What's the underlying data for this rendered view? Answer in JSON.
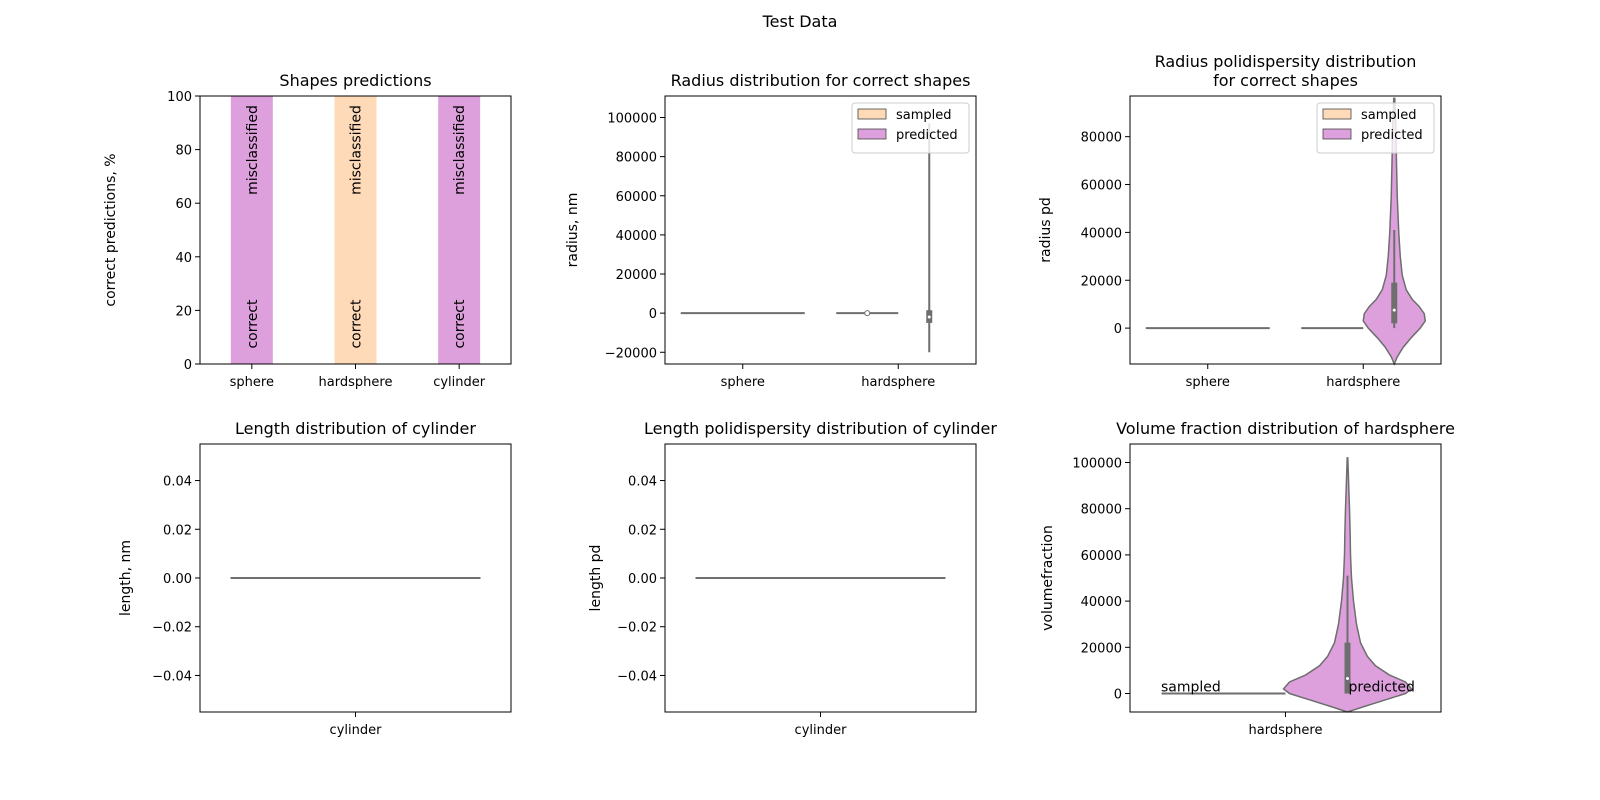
{
  "figure": {
    "suptitle": "Test Data"
  },
  "colors": {
    "sampled": "#ffdab9",
    "predicted": "#dda0dd",
    "line": "#6e6e6e",
    "edge": "#444444"
  },
  "chart_data": [
    {
      "type": "bar",
      "title": "Shapes predictions",
      "ylabel": "correct predictions, %",
      "categories": [
        "sphere",
        "hardsphere",
        "cylinder"
      ],
      "yticks": [
        "0",
        "20",
        "40",
        "60",
        "80",
        "100"
      ],
      "ylim": [
        0,
        100
      ],
      "series": [
        {
          "name": "correct",
          "values": [
            100,
            100,
            100
          ]
        },
        {
          "name": "misclassified",
          "values": [
            0,
            0,
            0
          ]
        }
      ],
      "bar_colors": [
        "#dda0dd",
        "#ffdab9",
        "#dda0dd"
      ],
      "bar_labels": {
        "correct": "correct",
        "misclassified": "misclassified"
      }
    },
    {
      "type": "violin",
      "title": "Radius distribution for correct shapes",
      "ylabel": "radius, nm",
      "categories": [
        "sphere",
        "hardsphere"
      ],
      "yticks": [
        "−20000",
        "0",
        "20000",
        "40000",
        "60000",
        "80000",
        "100000"
      ],
      "ylim": [
        -26000,
        111000
      ],
      "legend": {
        "position": "upper right",
        "items": [
          "sampled",
          "predicted"
        ]
      },
      "series": [
        {
          "name": "sampled",
          "category": "sphere",
          "min": 0,
          "max": 0,
          "median": 0
        },
        {
          "name": "sampled",
          "category": "hardsphere",
          "min": 0,
          "max": 0,
          "median": 0
        },
        {
          "name": "predicted",
          "category": "hardsphere",
          "min": -20000,
          "max": 97000,
          "q1": -5000,
          "q3": 1500,
          "median": -2000
        }
      ]
    },
    {
      "type": "violin",
      "title": "Radius polidispersity distribution\nfor correct shapes",
      "ylabel": "radius pd",
      "categories": [
        "sphere",
        "hardsphere"
      ],
      "yticks": [
        "0",
        "20000",
        "40000",
        "60000",
        "80000"
      ],
      "ylim": [
        -15000,
        97000
      ],
      "legend": {
        "position": "upper right",
        "items": [
          "sampled",
          "predicted"
        ]
      },
      "series": [
        {
          "name": "sampled",
          "category": "sphere",
          "min": 0,
          "max": 0,
          "median": 0
        },
        {
          "name": "sampled",
          "category": "hardsphere",
          "min": 0,
          "max": 0,
          "median": 0
        },
        {
          "name": "predicted",
          "category": "hardsphere",
          "min": 0,
          "max": 96000,
          "q1": 2000,
          "q3": 19000,
          "median": 7500,
          "whisker_high": 41000
        }
      ]
    },
    {
      "type": "violin",
      "title": "Length distribution of cylinder",
      "ylabel": "length, nm",
      "categories": [
        "cylinder"
      ],
      "yticks": [
        "−0.04",
        "−0.02",
        "0.00",
        "0.02",
        "0.04"
      ],
      "ylim": [
        -0.055,
        0.055
      ],
      "series": [
        {
          "name": "sampled",
          "category": "cylinder",
          "min": 0,
          "max": 0,
          "median": 0
        }
      ]
    },
    {
      "type": "violin",
      "title": "Length polidispersity distribution of cylinder",
      "ylabel": "length pd",
      "categories": [
        "cylinder"
      ],
      "yticks": [
        "−0.04",
        "−0.02",
        "0.00",
        "0.02",
        "0.04"
      ],
      "ylim": [
        -0.055,
        0.055
      ],
      "series": [
        {
          "name": "sampled",
          "category": "cylinder",
          "min": 0,
          "max": 0,
          "median": 0
        }
      ]
    },
    {
      "type": "violin",
      "title": "Volume fraction distribution of hardsphere",
      "ylabel": "volumefraction",
      "categories": [
        "hardsphere"
      ],
      "yticks": [
        "0",
        "20000",
        "40000",
        "60000",
        "80000",
        "100000"
      ],
      "ylim": [
        -8000,
        108000
      ],
      "annotations": [
        "sampled",
        "predicted"
      ],
      "series": [
        {
          "name": "sampled",
          "category": "hardsphere",
          "min": 0,
          "max": 0,
          "median": 0
        },
        {
          "name": "predicted",
          "category": "hardsphere",
          "min": -8000,
          "max": 102000,
          "q1": 0,
          "q3": 22000,
          "median": 6500,
          "whisker_high": 51000
        }
      ]
    }
  ]
}
